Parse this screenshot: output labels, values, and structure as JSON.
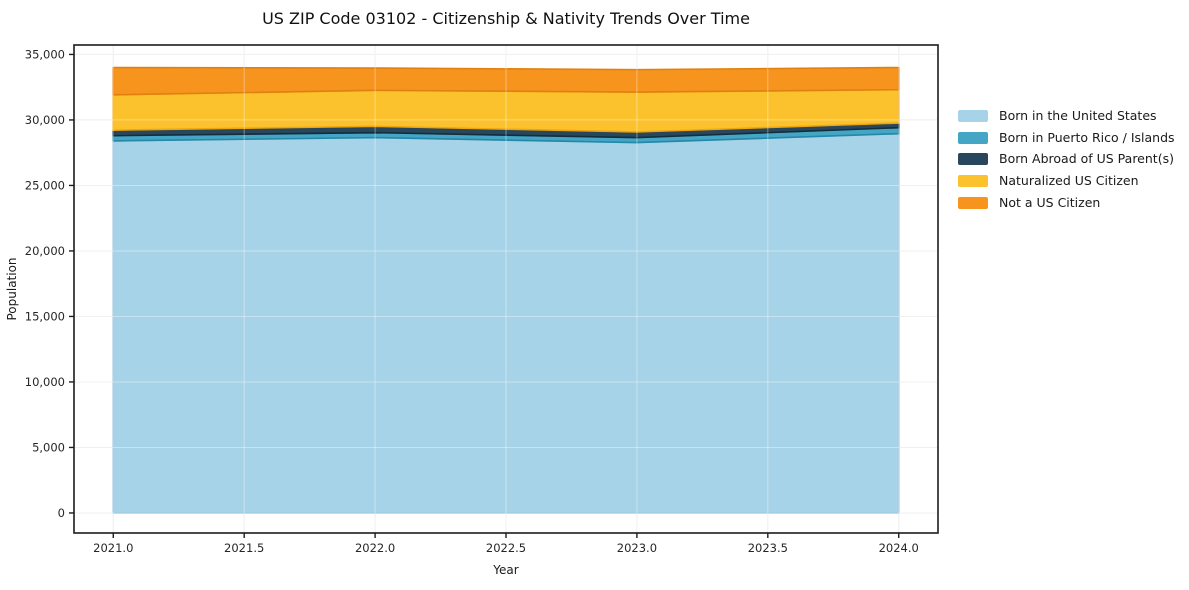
{
  "chart_data": {
    "type": "area",
    "stacked": true,
    "title": "US ZIP Code 03102 - Citizenship & Nativity Trends Over Time",
    "xlabel": "Year",
    "ylabel": "Population",
    "x": [
      2021,
      2022,
      2023,
      2024
    ],
    "xlim": [
      2020.85,
      2024.15
    ],
    "ylim": [
      -1530,
      35720
    ],
    "x_ticks": [
      2021.0,
      2021.5,
      2022.0,
      2022.5,
      2023.0,
      2023.5,
      2024.0
    ],
    "x_tick_labels": [
      "2021.0",
      "2021.5",
      "2022.0",
      "2022.5",
      "2023.0",
      "2023.5",
      "2024.0"
    ],
    "y_ticks": [
      0,
      5000,
      10000,
      15000,
      20000,
      25000,
      30000,
      35000
    ],
    "y_tick_labels": [
      "0",
      "5,000",
      "10,000",
      "15,000",
      "20,000",
      "25,000",
      "30,000",
      "35,000"
    ],
    "grid": true,
    "legend_position": "outside-right",
    "series": [
      {
        "name": "Born in the United States",
        "values": [
          28400,
          28650,
          28270,
          28950
        ],
        "color": "#a7d3e8",
        "edge": "#8cc1da"
      },
      {
        "name": "Born in Puerto Rico / Islands",
        "values": [
          400,
          380,
          380,
          460
        ],
        "color": "#44a5c4",
        "edge": "#2488a8"
      },
      {
        "name": "Born Abroad of US Parent(s)",
        "values": [
          420,
          480,
          430,
          350
        ],
        "color": "#29475c",
        "edge": "#142c3c"
      },
      {
        "name": "Naturalized US Citizen",
        "values": [
          2700,
          2750,
          3050,
          2550
        ],
        "color": "#fcc22d",
        "edge": "#eda611"
      },
      {
        "name": "Not a US Citizen",
        "values": [
          2080,
          1700,
          1710,
          1690
        ],
        "color": "#f7941e",
        "edge": "#e0800e"
      }
    ],
    "colors": {
      "grid_under": "#e7e7e7",
      "grid_over": "rgba(255,255,255,0.38)",
      "spine": "#1c1c1c",
      "background": "#ffffff"
    }
  }
}
